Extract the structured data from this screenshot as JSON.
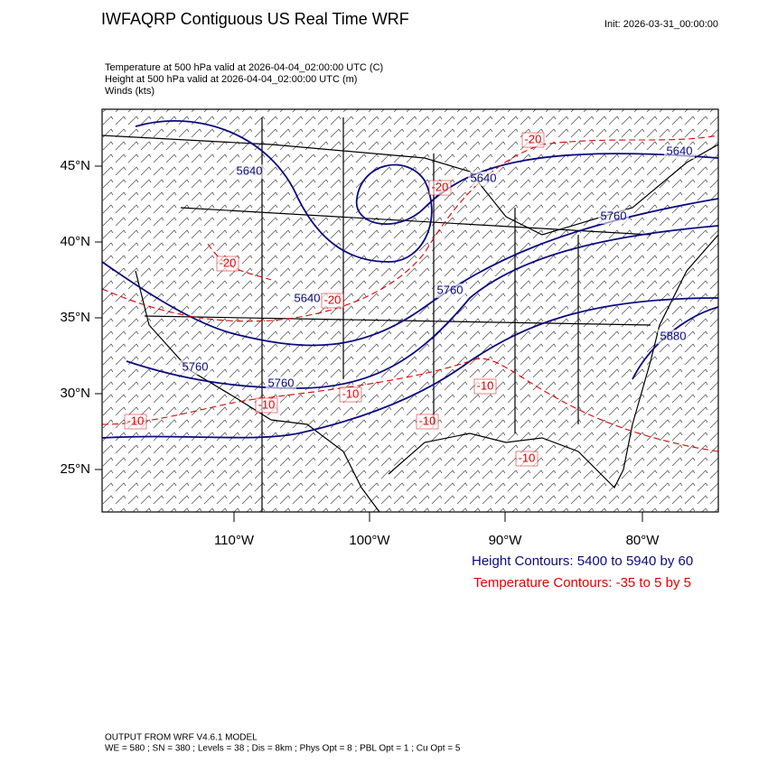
{
  "header": {
    "title": "IWFAQRP Contiguous US Real Time WRF",
    "init": "Init: 2026-03-31_00:00:00",
    "fields": [
      "Temperature at 500 hPa valid at 2026-04-04_02:00:00 UTC   (C)",
      "Height at 500 hPa valid at 2026-04-04_02:00:00 UTC   (m)",
      "Winds   (kts)"
    ]
  },
  "map": {
    "lat_labels": [
      "45°N",
      "40°N",
      "35°N",
      "30°N",
      "25°N"
    ],
    "lon_labels": [
      "110°W",
      "100°W",
      "90°W",
      "80°W"
    ],
    "height_labels": [
      "5640",
      "5640",
      "5640",
      "5640",
      "5760",
      "5760",
      "5760",
      "5760",
      "5880"
    ],
    "temp_labels": [
      "-20",
      "-20",
      "-20",
      "-20",
      "-10",
      "-10",
      "-10",
      "-10",
      "-10",
      "-10"
    ]
  },
  "legend": {
    "height": "Height Contours: 5400 to 5940 by 60",
    "temperature": "Temperature Contours: -35 to 5 by 5"
  },
  "footer": {
    "model": "OUTPUT FROM WRF V4.6.1 MODEL",
    "options": "WE = 580 ; SN = 380 ; Levels = 38 ; Dis = 8km ; Phys Opt = 8 ; PBL Opt = 1 ; Cu Opt = 5"
  }
}
